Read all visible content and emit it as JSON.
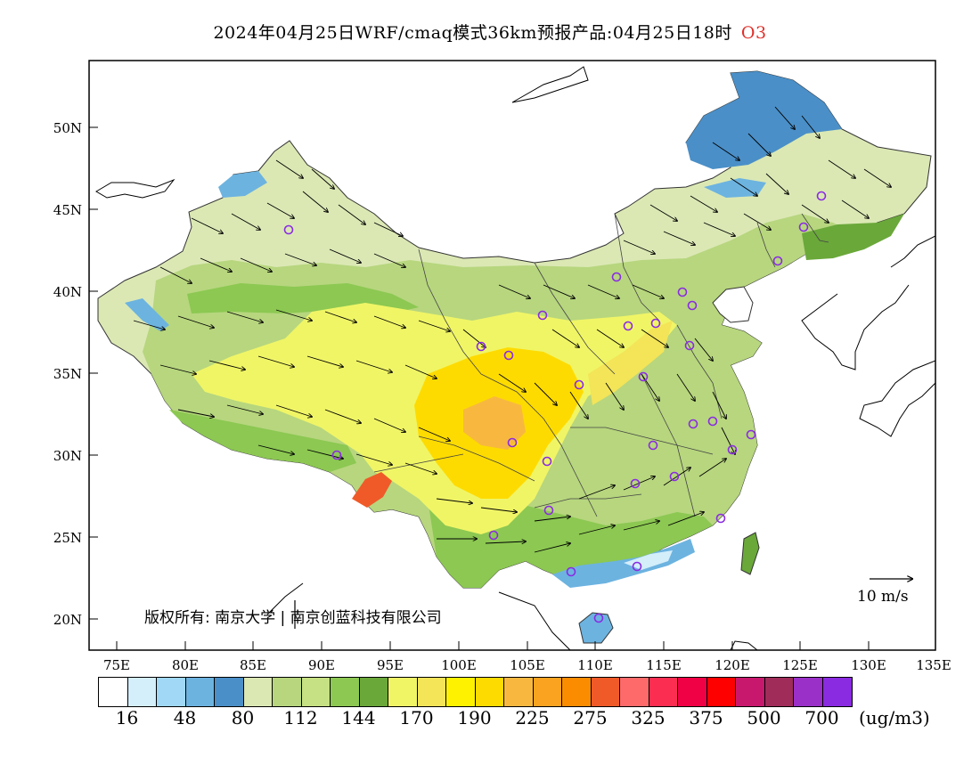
{
  "title": {
    "main": "2024年04月25日WRF/cmaq模式36km预报产品:04月25日18时",
    "pollutant": "O3",
    "pollutant_color": "#e0302a"
  },
  "axes": {
    "y_ticks": [
      "50N",
      "45N",
      "40N",
      "35N",
      "30N",
      "25N",
      "20N"
    ],
    "x_ticks": [
      "75E",
      "80E",
      "85E",
      "90E",
      "95E",
      "100E",
      "105E",
      "110E",
      "115E",
      "120E",
      "125E",
      "130E",
      "135E"
    ]
  },
  "copyright": "版权所有: 南京大学 | 南京创蓝科技有限公司",
  "wind_reference": {
    "label": "10 m/s"
  },
  "legend": {
    "colors": [
      "#ffffff",
      "#d4eefa",
      "#a0d8f5",
      "#6cb3e0",
      "#4a8fc8",
      "#dbe8b4",
      "#b7d67e",
      "#c6e183",
      "#8cc852",
      "#6aa83a",
      "#f0f566",
      "#f3e458",
      "#fff200",
      "#fedb00",
      "#f8b840",
      "#faa320",
      "#fb8c00",
      "#f05a28",
      "#fe6a6a",
      "#fb2e52",
      "#f00045",
      "#ff0000",
      "#c8186e",
      "#a02c5a",
      "#9a30c8",
      "#8a2be2"
    ],
    "labels": [
      "16",
      "48",
      "80",
      "112",
      "144",
      "170",
      "190",
      "225",
      "275",
      "325",
      "375",
      "500",
      "700"
    ],
    "unit": "(ug/m3)"
  },
  "map": {
    "lon_range": [
      73.5,
      135
    ],
    "lat_range": [
      18,
      54
    ],
    "city_markers": "purple circles at monitoring cities"
  }
}
